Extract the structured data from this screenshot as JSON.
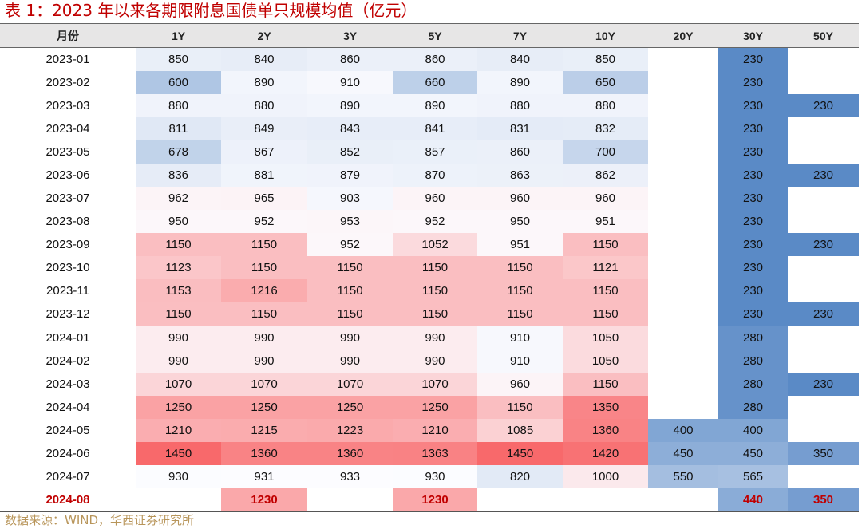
{
  "title": "表 1：2023 年以来各期限附息国债单只规模均值（亿元）",
  "source": "数据来源：WIND，华西证券研究所",
  "chart_data": {
    "type": "heatmap",
    "title": "表 1：2023 年以来各期限附息国债单只规模均值（亿元）",
    "row_header": "月份",
    "columns": [
      "1Y",
      "2Y",
      "3Y",
      "5Y",
      "7Y",
      "10Y",
      "20Y",
      "30Y",
      "50Y"
    ],
    "color_scale": {
      "low": "#5a8ac6",
      "mid": "#fcfcff",
      "high": "#f8696b"
    },
    "highlight_row_color": "#c00000",
    "rows": [
      {
        "month": "2023-01",
        "values": [
          850,
          840,
          860,
          860,
          840,
          850,
          null,
          230,
          null
        ]
      },
      {
        "month": "2023-02",
        "values": [
          600,
          890,
          910,
          660,
          890,
          650,
          null,
          230,
          null
        ]
      },
      {
        "month": "2023-03",
        "values": [
          880,
          880,
          890,
          890,
          880,
          880,
          null,
          230,
          230
        ]
      },
      {
        "month": "2023-04",
        "values": [
          811,
          849,
          843,
          841,
          831,
          832,
          null,
          230,
          null
        ]
      },
      {
        "month": "2023-05",
        "values": [
          678,
          867,
          852,
          857,
          860,
          700,
          null,
          230,
          null
        ]
      },
      {
        "month": "2023-06",
        "values": [
          836,
          881,
          879,
          870,
          863,
          862,
          null,
          230,
          230
        ]
      },
      {
        "month": "2023-07",
        "values": [
          962,
          965,
          903,
          960,
          960,
          960,
          null,
          230,
          null
        ]
      },
      {
        "month": "2023-08",
        "values": [
          950,
          952,
          953,
          952,
          950,
          951,
          null,
          230,
          null
        ]
      },
      {
        "month": "2023-09",
        "values": [
          1150,
          1150,
          952,
          1052,
          951,
          1150,
          null,
          230,
          230
        ]
      },
      {
        "month": "2023-10",
        "values": [
          1123,
          1150,
          1150,
          1150,
          1150,
          1121,
          null,
          230,
          null
        ]
      },
      {
        "month": "2023-11",
        "values": [
          1153,
          1216,
          1150,
          1150,
          1150,
          1150,
          null,
          230,
          null
        ]
      },
      {
        "month": "2023-12",
        "values": [
          1150,
          1150,
          1150,
          1150,
          1150,
          1150,
          null,
          230,
          230
        ]
      },
      {
        "month": "2024-01",
        "values": [
          990,
          990,
          990,
          990,
          910,
          1050,
          null,
          280,
          null
        ]
      },
      {
        "month": "2024-02",
        "values": [
          990,
          990,
          990,
          990,
          910,
          1050,
          null,
          280,
          null
        ]
      },
      {
        "month": "2024-03",
        "values": [
          1070,
          1070,
          1070,
          1070,
          960,
          1150,
          null,
          280,
          230
        ]
      },
      {
        "month": "2024-04",
        "values": [
          1250,
          1250,
          1250,
          1250,
          1150,
          1350,
          null,
          280,
          null
        ]
      },
      {
        "month": "2024-05",
        "values": [
          1210,
          1215,
          1223,
          1210,
          1085,
          1360,
          400,
          400,
          null
        ]
      },
      {
        "month": "2024-06",
        "values": [
          1450,
          1360,
          1360,
          1363,
          1450,
          1420,
          450,
          450,
          350
        ]
      },
      {
        "month": "2024-07",
        "values": [
          930,
          931,
          933,
          930,
          820,
          1000,
          550,
          565,
          null
        ]
      },
      {
        "month": "2024-08",
        "values": [
          null,
          1230,
          null,
          1230,
          null,
          null,
          null,
          440,
          350
        ]
      }
    ]
  }
}
